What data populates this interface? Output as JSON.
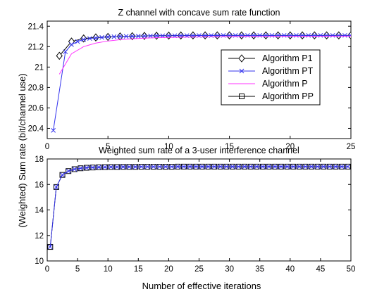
{
  "ylabel": "(Weighted) Sum rate (bit/channel use)",
  "xlabel": "Number of effective iterations",
  "chart_data": [
    {
      "type": "line",
      "title": "Z channel with concave sum rate function",
      "xlim": [
        0,
        25
      ],
      "ylim": [
        20.3,
        21.45
      ],
      "xticks": [
        0,
        5,
        10,
        15,
        20,
        25
      ],
      "yticks": [
        20.4,
        20.6,
        20.8,
        21,
        21.2,
        21.4
      ],
      "grid": false,
      "legend_position": "right",
      "series": [
        {
          "name": "Algorithm P1",
          "color": "#000000",
          "marker": "diamond",
          "x": [
            1,
            2,
            3,
            4,
            5,
            6,
            7,
            8,
            9,
            10,
            11,
            12,
            13,
            14,
            15,
            16,
            17,
            18,
            19,
            20,
            21,
            22,
            23,
            24,
            25
          ],
          "y": [
            21.11,
            21.25,
            21.28,
            21.29,
            21.295,
            21.3,
            21.302,
            21.305,
            21.307,
            21.308,
            21.309,
            21.31,
            21.31,
            21.31,
            21.31,
            21.31,
            21.31,
            21.31,
            21.31,
            21.31,
            21.31,
            21.31,
            21.31,
            21.31,
            21.31
          ]
        },
        {
          "name": "Algorithm PT",
          "color": "#3333ee",
          "marker": "x",
          "x": [
            0.5,
            1.5,
            2,
            2.5,
            3,
            3.5,
            4,
            4.5,
            5,
            5.5,
            6,
            6.5,
            7,
            7.5,
            8,
            8.5,
            9,
            9.5,
            10,
            10.5,
            11,
            11.5,
            12,
            12.5,
            13,
            13.5,
            14,
            14.5,
            15,
            15.5,
            16,
            16.5,
            17,
            17.5,
            18,
            18.5,
            19,
            19.5,
            20,
            20.5,
            21,
            21.5,
            22,
            22.5,
            23,
            23.5,
            24,
            24.5,
            25
          ],
          "y": [
            20.38,
            21.15,
            21.22,
            21.25,
            21.27,
            21.28,
            21.285,
            21.29,
            21.295,
            21.297,
            21.3,
            21.301,
            21.302,
            21.303,
            21.304,
            21.305,
            21.306,
            21.306,
            21.307,
            21.307,
            21.308,
            21.308,
            21.308,
            21.309,
            21.309,
            21.309,
            21.309,
            21.31,
            21.31,
            21.31,
            21.31,
            21.31,
            21.31,
            21.31,
            21.31,
            21.31,
            21.31,
            21.31,
            21.31,
            21.31,
            21.31,
            21.31,
            21.31,
            21.31,
            21.31,
            21.31,
            21.31,
            21.31,
            21.31
          ]
        },
        {
          "name": "Algorithm P",
          "color": "#ff33ff",
          "marker": "none",
          "x": [
            1,
            2,
            3,
            4,
            5,
            6,
            7,
            8,
            9,
            10,
            12,
            14,
            16,
            18,
            20,
            22,
            25
          ],
          "y": [
            20.93,
            21.13,
            21.2,
            21.235,
            21.255,
            21.268,
            21.277,
            21.283,
            21.287,
            21.29,
            21.294,
            21.297,
            21.299,
            21.3,
            21.301,
            21.302,
            21.303
          ]
        }
      ]
    },
    {
      "type": "line",
      "title": "Weighted sum rate of a 3-user interference channel",
      "xlim": [
        0,
        50
      ],
      "ylim": [
        10,
        18
      ],
      "xticks": [
        0,
        5,
        10,
        15,
        20,
        25,
        30,
        35,
        40,
        45,
        50
      ],
      "yticks": [
        10,
        12,
        14,
        16,
        18
      ],
      "grid": false,
      "series": [
        {
          "name": "Algorithm PP",
          "color": "#000000",
          "marker": "square",
          "x": [
            0.5,
            1.5,
            2.5,
            3.5,
            4.5,
            5.5,
            6.5,
            7.5,
            8.5,
            9.5,
            10.5,
            11.5,
            12.5,
            13.5,
            14.5,
            15.5,
            16.5,
            17.5,
            18.5,
            19.5,
            20.5,
            21.5,
            22.5,
            23.5,
            24.5,
            25.5,
            26.5,
            27.5,
            28.5,
            29.5,
            30.5,
            31.5,
            32.5,
            33.5,
            34.5,
            35.5,
            36.5,
            37.5,
            38.5,
            39.5,
            40.5,
            41.5,
            42.5,
            43.5,
            44.5,
            45.5,
            46.5,
            47.5,
            48.5,
            49.5
          ],
          "y": [
            11.1,
            15.8,
            16.75,
            17.05,
            17.2,
            17.27,
            17.31,
            17.33,
            17.35,
            17.36,
            17.37,
            17.37,
            17.38,
            17.38,
            17.38,
            17.39,
            17.39,
            17.39,
            17.39,
            17.39,
            17.39,
            17.4,
            17.4,
            17.4,
            17.4,
            17.4,
            17.4,
            17.4,
            17.4,
            17.4,
            17.4,
            17.4,
            17.4,
            17.4,
            17.4,
            17.4,
            17.4,
            17.4,
            17.4,
            17.4,
            17.4,
            17.4,
            17.4,
            17.4,
            17.4,
            17.4,
            17.4,
            17.4,
            17.4,
            17.4
          ]
        },
        {
          "name": "Algorithm PT",
          "color": "#3333ee",
          "marker": "x",
          "x": [
            0.5,
            1.5,
            2.5,
            3.5,
            4.5,
            5.5,
            6.5,
            7.5,
            8.5,
            9.5,
            10.5,
            11.5,
            12.5,
            13.5,
            14.5,
            15.5,
            16.5,
            17.5,
            18.5,
            19.5,
            20.5,
            21.5,
            22.5,
            23.5,
            24.5,
            25.5,
            26.5,
            27.5,
            28.5,
            29.5,
            30.5,
            31.5,
            32.5,
            33.5,
            34.5,
            35.5,
            36.5,
            37.5,
            38.5,
            39.5,
            40.5,
            41.5,
            42.5,
            43.5,
            44.5,
            45.5,
            46.5,
            47.5,
            48.5,
            49.5
          ],
          "y": [
            11.1,
            15.8,
            16.75,
            17.05,
            17.2,
            17.27,
            17.31,
            17.33,
            17.35,
            17.36,
            17.37,
            17.37,
            17.38,
            17.38,
            17.38,
            17.39,
            17.39,
            17.39,
            17.39,
            17.39,
            17.39,
            17.4,
            17.4,
            17.4,
            17.4,
            17.4,
            17.4,
            17.4,
            17.4,
            17.4,
            17.4,
            17.4,
            17.4,
            17.4,
            17.4,
            17.4,
            17.4,
            17.4,
            17.4,
            17.4,
            17.4,
            17.4,
            17.4,
            17.4,
            17.4,
            17.4,
            17.4,
            17.4,
            17.4,
            17.4
          ]
        }
      ]
    }
  ]
}
